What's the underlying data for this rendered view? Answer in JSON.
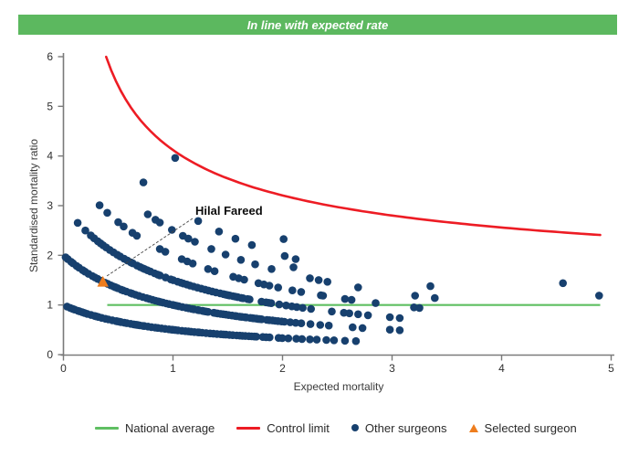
{
  "banner": {
    "text": "In line with expected rate",
    "bg_color": "#5cb85f",
    "text_color": "#ffffff"
  },
  "chart_data": {
    "type": "scatter",
    "xlabel": "Expected mortality",
    "ylabel": "Standardised mortality ratio",
    "xlim": [
      0,
      5
    ],
    "ylim": [
      0,
      6
    ],
    "x_ticks": [
      0,
      1,
      2,
      3,
      4,
      5
    ],
    "y_ticks": [
      0,
      1,
      2,
      3,
      4,
      5,
      6
    ],
    "grid": "off",
    "national_average": {
      "y": 1.0,
      "x_range": [
        0.4,
        4.9
      ],
      "color": "#5fbf62"
    },
    "control_limit": {
      "formula": "smr = 1 + 3.12 / sqrt(expected)",
      "a": 1,
      "b": 3.12,
      "x_range": [
        0.39,
        4.9
      ],
      "color": "#ed1c24"
    },
    "other_surgeons": {
      "color": "#17406e",
      "model": "smr = deaths / (1 + expected)",
      "bands": [
        {
          "deaths": 1,
          "dense_segments": [
            {
              "from": 0.02,
              "to": 1.78,
              "step": 0.024
            },
            {
              "from": 1.82,
              "to": 2.32,
              "step": 0.06
            }
          ],
          "points": [
            2.4,
            2.47,
            2.57,
            2.67
          ]
        },
        {
          "deaths": 2,
          "dense_segments": [
            {
              "from": 0.02,
              "to": 2.02,
              "step": 0.024
            },
            {
              "from": 2.07,
              "to": 2.44,
              "step": 0.065
            }
          ],
          "points": [
            2.64,
            2.73,
            2.98,
            3.07
          ]
        },
        {
          "deaths": 3,
          "dense_segments": [
            {
              "from": 0.28,
              "to": 1.92,
              "step": 0.028
            },
            {
              "from": 1.97,
              "to": 2.3,
              "step": 0.06
            }
          ],
          "points": [
            0.13,
            0.2,
            0.25,
            2.45,
            2.56,
            2.61,
            2.69,
            2.78,
            2.98,
            3.07
          ]
        },
        {
          "deaths": 4,
          "dense_segments": [],
          "points": [
            0.33,
            0.4,
            0.5,
            0.55,
            0.63,
            0.67,
            0.88,
            0.93,
            1.08,
            1.13,
            1.18,
            1.32,
            1.38,
            1.55,
            1.6,
            1.65,
            1.78,
            1.83,
            1.88,
            1.96,
            2.09,
            2.17,
            2.35,
            2.37,
            2.57,
            2.63,
            2.85,
            3.2,
            3.25
          ]
        },
        {
          "deaths": 5,
          "dense_segments": [],
          "points": [
            0.77,
            0.84,
            0.88,
            0.99,
            1.09,
            1.14,
            1.2,
            1.35,
            1.48,
            1.62,
            1.75,
            1.9,
            2.25,
            2.33,
            2.41,
            2.69,
            3.21,
            3.39
          ]
        },
        {
          "deaths": 6,
          "dense_segments": [],
          "points": [
            0.73,
            1.23,
            1.42,
            1.57,
            1.72,
            2.02,
            2.12,
            3.35
          ]
        },
        {
          "deaths": 7,
          "dense_segments": [],
          "points": [
            2.01,
            4.89
          ]
        },
        {
          "deaths": 8,
          "dense_segments": [],
          "points": [
            1.02,
            4.56
          ]
        }
      ],
      "extra_points": [
        [
          2.1,
          1.76
        ]
      ]
    },
    "selected_surgeon": {
      "name": "Hilal Fareed",
      "x": 0.36,
      "y": 1.47,
      "color": "#ee7d1e"
    }
  },
  "legend": {
    "items": [
      {
        "label": "National average",
        "swatch": "line",
        "color": "#5fbf62"
      },
      {
        "label": "Control limit",
        "swatch": "line",
        "color": "#ed1c24"
      },
      {
        "label": "Other surgeons",
        "swatch": "dot",
        "color": "#17406e"
      },
      {
        "label": "Selected surgeon",
        "swatch": "triangle",
        "color": "#ee7d1e"
      }
    ]
  }
}
